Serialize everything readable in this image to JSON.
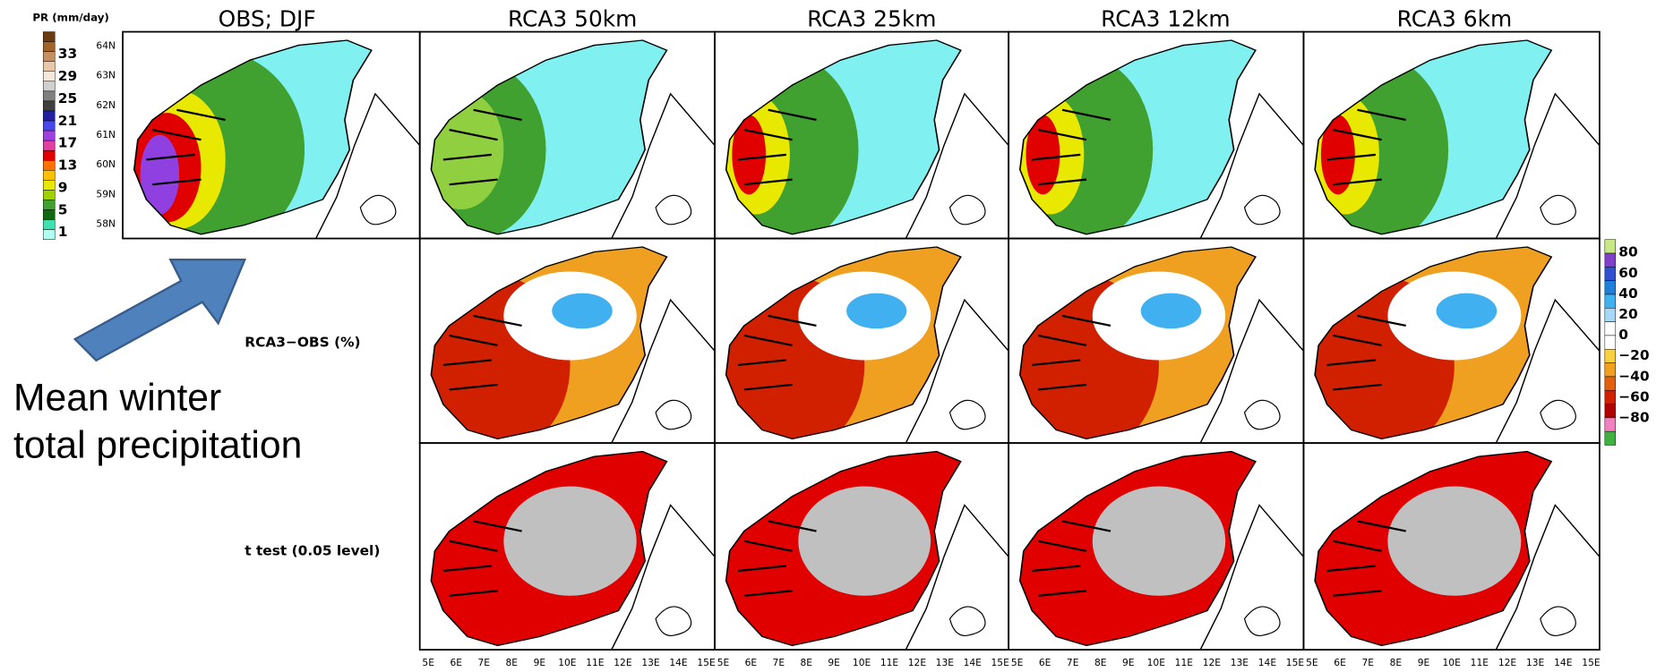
{
  "header": {
    "legend_title": "PR (mm/day)",
    "panel_titles": [
      "OBS; DJF",
      "RCA3  50km",
      "RCA3  25km",
      "RCA3  12km",
      "RCA3   6km"
    ]
  },
  "pr_colorbar": {
    "labels": [
      "33",
      "29",
      "25",
      "21",
      "17",
      "13",
      "9",
      "5",
      "1"
    ],
    "colors": [
      "#6b3a10",
      "#a0642a",
      "#c89060",
      "#e8c8a8",
      "#f4e8dc",
      "#d0d0d0",
      "#808080",
      "#404040",
      "#2020a0",
      "#4848e8",
      "#a040e0",
      "#e040a0",
      "#e00000",
      "#ff7000",
      "#ffc000",
      "#e8e800",
      "#a0d000",
      "#40a030",
      "#106810",
      "#40e0b0",
      "#b0fff0"
    ]
  },
  "diff_colorbar": {
    "labels": [
      "80",
      "60",
      "40",
      "20",
      "0",
      "−20",
      "−40",
      "−60",
      "−80"
    ],
    "colors": [
      "#c8e888",
      "#8040c8",
      "#3050d0",
      "#2080d8",
      "#40b0f0",
      "#a8d8f8",
      "#ffffff",
      "#ffffff",
      "#f8d040",
      "#f0a020",
      "#e06010",
      "#d02000",
      "#b00000",
      "#f080c0",
      "#40b040"
    ]
  },
  "lat_labels": [
    "64N",
    "63N",
    "62N",
    "61N",
    "60N",
    "59N",
    "58N"
  ],
  "lon_labels": [
    "5E",
    "6E",
    "7E",
    "8E",
    "9E",
    "10E",
    "11E",
    "12E",
    "13E",
    "14E",
    "15E"
  ],
  "row_labels": [
    "RCA3−OBS (%)",
    "t test (0.05 level)"
  ],
  "annotation": [
    "Mean winter",
    "total precipitation"
  ]
}
